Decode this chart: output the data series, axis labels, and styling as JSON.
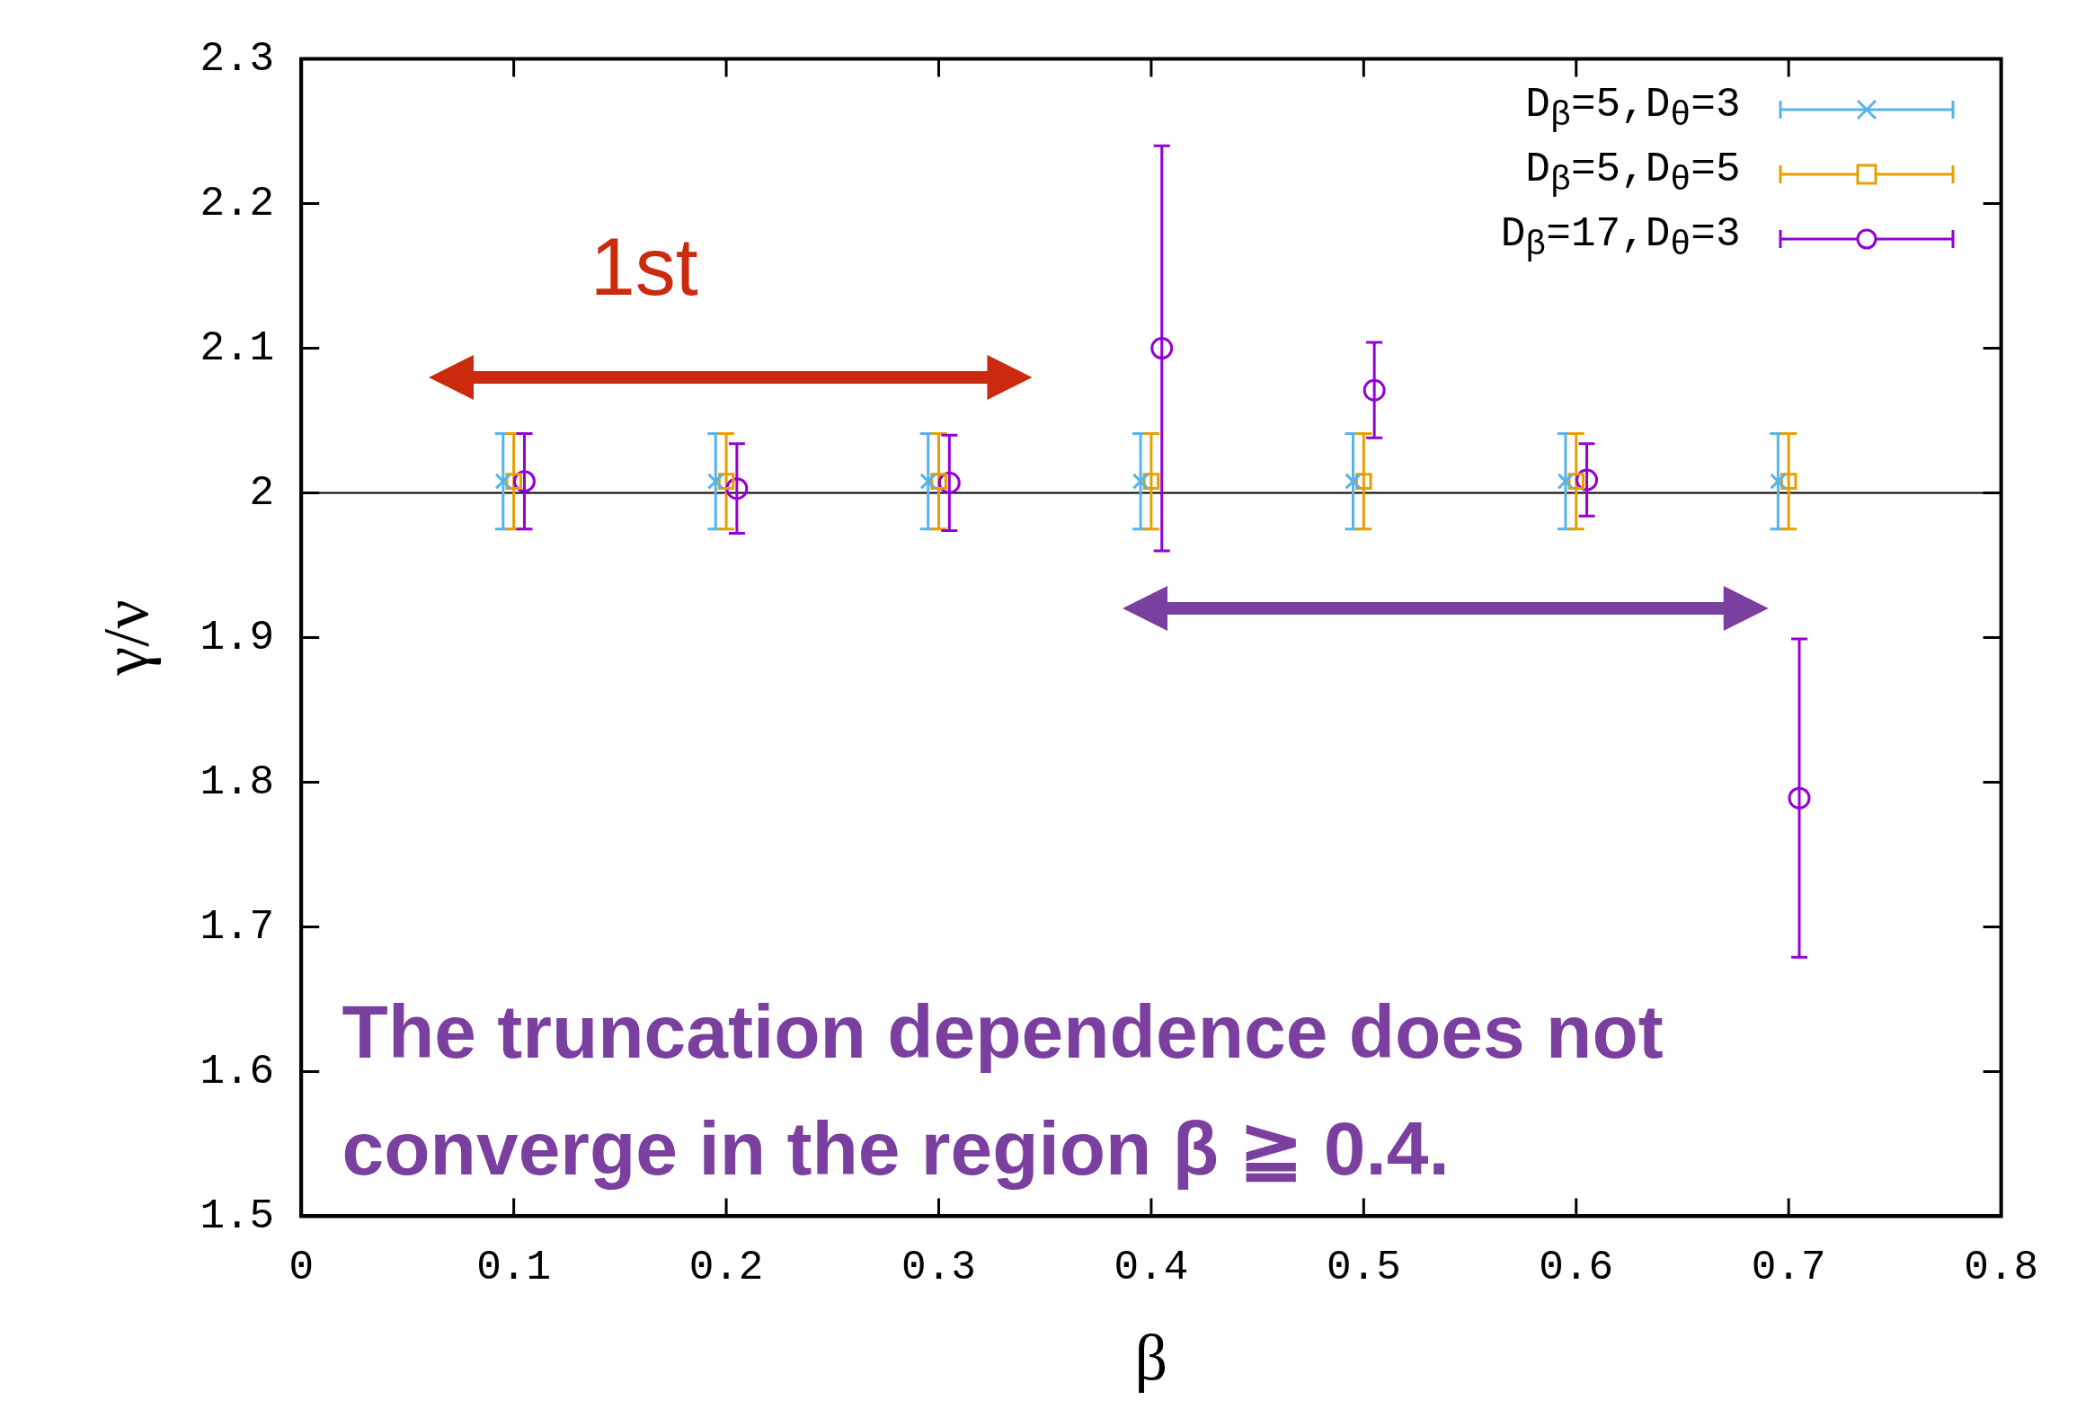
{
  "chart_data": {
    "type": "scatter",
    "xlabel": "β",
    "ylabel": "γ/ν",
    "xlim": [
      0,
      0.8
    ],
    "xticks": [
      0,
      0.1,
      0.2,
      0.3,
      0.4,
      0.5,
      0.6,
      0.7,
      0.8
    ],
    "ylim": [
      1.5,
      2.3
    ],
    "yticks": [
      1.5,
      1.6,
      1.7,
      1.8,
      1.9,
      2,
      2.1,
      2.2,
      2.3
    ],
    "grid": false,
    "legend": "top right",
    "series": [
      {
        "name": "D$_{β}$=5,D$_{θ}$=3",
        "color": "#56b4e9",
        "marker": "cross",
        "x": [
          0.095,
          0.195,
          0.295,
          0.395,
          0.495,
          0.595,
          0.695
        ],
        "values": [
          2.008,
          2.008,
          2.008,
          2.008,
          2.008,
          2.008,
          2.008
        ],
        "errors": [
          0.033,
          0.033,
          0.033,
          0.033,
          0.033,
          0.033,
          0.033
        ]
      },
      {
        "name": "D$_{β}$=5,D$_{θ}$=5",
        "color": "#e69f00",
        "marker": "square",
        "x": [
          0.1,
          0.2,
          0.3,
          0.4,
          0.5,
          0.6,
          0.7
        ],
        "values": [
          2.008,
          2.008,
          2.008,
          2.008,
          2.008,
          2.008,
          2.008
        ],
        "errors": [
          0.033,
          0.033,
          0.033,
          0.033,
          0.033,
          0.033,
          0.033
        ]
      },
      {
        "name": "D$_{β}$=17,D$_{θ}$=3",
        "color": "#9400d3",
        "marker": "circle",
        "x": [
          0.105,
          0.205,
          0.305,
          0.405,
          0.505,
          0.605,
          0.705
        ],
        "values": [
          2.008,
          2.003,
          2.007,
          2.1,
          2.071,
          2.009,
          1.789
        ],
        "errors": [
          0.033,
          0.031,
          0.033,
          0.14,
          0.033,
          0.025,
          0.11
        ]
      }
    ],
    "ref_lines": [
      {
        "axis": "y",
        "value": 2,
        "color": "#000000"
      }
    ],
    "annotations": [
      "1st",
      "The truncation dependence does not converge in the region β ≧ 0.4."
    ]
  }
}
